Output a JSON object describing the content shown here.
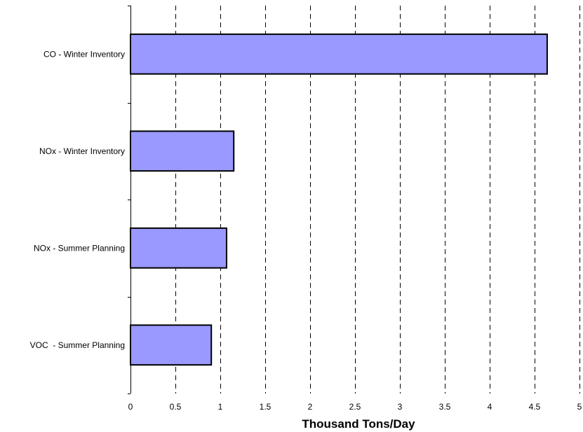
{
  "chart_data": {
    "type": "bar",
    "orientation": "horizontal",
    "title": "",
    "xlabel": "Thousand Tons/Day",
    "ylabel": "",
    "categories": [
      "CO - Winter Inventory",
      "NOx - Winter Inventory",
      "NOx - Summer Planning",
      "VOC  - Summer Planning"
    ],
    "values": [
      4.64,
      1.15,
      1.07,
      0.9
    ],
    "xlim": [
      0,
      5
    ],
    "xticks": [
      0,
      0.5,
      1,
      1.5,
      2,
      2.5,
      3,
      3.5,
      4,
      4.5,
      5
    ],
    "grid": "vertical-dashed",
    "legend": "none",
    "bar_color": "#9999ff",
    "bar_edge_color": "#000000"
  }
}
